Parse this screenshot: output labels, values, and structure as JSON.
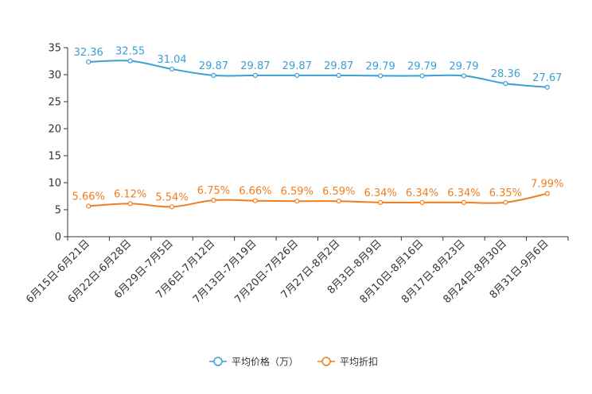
{
  "chart_data": {
    "type": "line",
    "title": "",
    "xlabel": "",
    "ylabel": "",
    "ylim": [
      0,
      35
    ],
    "yticks": [
      0,
      5,
      10,
      15,
      20,
      25,
      30,
      35
    ],
    "grid": false,
    "legend_position": "bottom",
    "categories": [
      "6月15日-6月21日",
      "6月22日-6月28日",
      "6月29日-7月5日",
      "7月6日-7月12日",
      "7月13日-7月19日",
      "7月20日-7月26日",
      "7月27日-8月2日",
      "8月3日-8月9日",
      "8月10日-8月16日",
      "8月17日-8月23日",
      "8月24日-8月30日",
      "8月31日-9月6日"
    ],
    "series": [
      {
        "name": "平均价格（万）",
        "color": "#3a9fd6",
        "values": [
          32.36,
          32.55,
          31.04,
          29.87,
          29.87,
          29.87,
          29.87,
          29.79,
          29.79,
          29.79,
          28.36,
          27.67
        ],
        "labels": [
          "32.36",
          "32.55",
          "31.04",
          "29.87",
          "29.87",
          "29.87",
          "29.87",
          "29.79",
          "29.79",
          "29.79",
          "28.36",
          "27.67"
        ]
      },
      {
        "name": "平均折扣",
        "color": "#f07d1e",
        "values": [
          5.66,
          6.12,
          5.54,
          6.75,
          6.66,
          6.59,
          6.59,
          6.34,
          6.34,
          6.34,
          6.35,
          7.99
        ],
        "labels": [
          "5.66%",
          "6.12%",
          "5.54%",
          "6.75%",
          "6.66%",
          "6.59%",
          "6.59%",
          "6.34%",
          "6.34%",
          "6.34%",
          "6.35%",
          "7.99%"
        ]
      }
    ]
  }
}
